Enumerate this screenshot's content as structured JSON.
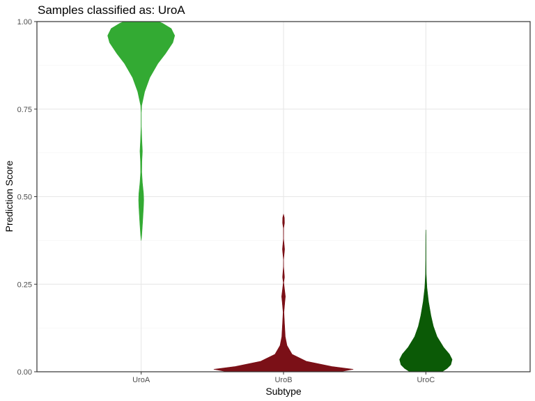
{
  "chart_data": {
    "type": "violin",
    "title": "Samples classified as: UroA",
    "xlabel": "Subtype",
    "ylabel": "Prediction Score",
    "categories": [
      "UroA",
      "UroB",
      "UroC"
    ],
    "ylim": [
      0,
      1
    ],
    "yticks": [
      0,
      0.25,
      0.5,
      0.75,
      1
    ],
    "ytick_labels": [
      "0.00",
      "0.25",
      "0.50",
      "0.75",
      "1.00"
    ],
    "grid": true,
    "series": [
      {
        "category": "UroA",
        "color": "#33AA33",
        "range": [
          0.375,
          1.0
        ],
        "density": [
          [
            0.375,
            0.0
          ],
          [
            0.39,
            0.2
          ],
          [
            0.43,
            0.55
          ],
          [
            0.47,
            0.85
          ],
          [
            0.49,
            0.95
          ],
          [
            0.51,
            0.85
          ],
          [
            0.54,
            0.45
          ],
          [
            0.57,
            0.2
          ],
          [
            0.6,
            0.25
          ],
          [
            0.63,
            0.45
          ],
          [
            0.66,
            0.25
          ],
          [
            0.7,
            0.05
          ],
          [
            0.74,
            0.04
          ],
          [
            0.76,
            0.18
          ],
          [
            0.8,
            1.3
          ],
          [
            0.84,
            3.2
          ],
          [
            0.88,
            6.2
          ],
          [
            0.91,
            9.2
          ],
          [
            0.94,
            11.8
          ],
          [
            0.96,
            12.5
          ],
          [
            0.98,
            11.2
          ],
          [
            0.995,
            8.0
          ],
          [
            1.0,
            6.5
          ]
        ]
      },
      {
        "category": "UroB",
        "color": "#7B1017",
        "range": [
          0.0,
          0.45
        ],
        "density": [
          [
            0.0,
            21.0
          ],
          [
            0.007,
            26.0
          ],
          [
            0.015,
            18.0
          ],
          [
            0.03,
            8.5
          ],
          [
            0.05,
            3.2
          ],
          [
            0.075,
            1.3
          ],
          [
            0.1,
            0.65
          ],
          [
            0.14,
            0.35
          ],
          [
            0.17,
            0.15
          ],
          [
            0.2,
            0.5
          ],
          [
            0.215,
            0.7
          ],
          [
            0.24,
            0.3
          ],
          [
            0.255,
            0.08
          ],
          [
            0.27,
            0.35
          ],
          [
            0.3,
            0.05
          ],
          [
            0.32,
            0.02
          ],
          [
            0.35,
            0.4
          ],
          [
            0.38,
            0.03
          ],
          [
            0.41,
            0.05
          ],
          [
            0.425,
            0.35
          ],
          [
            0.44,
            0.3
          ],
          [
            0.45,
            0.0
          ]
        ]
      },
      {
        "category": "UroC",
        "color": "#0B5A06",
        "range": [
          0.0,
          0.405
        ],
        "density": [
          [
            0.0,
            6.0
          ],
          [
            0.01,
            8.0
          ],
          [
            0.02,
            9.3
          ],
          [
            0.035,
            9.8
          ],
          [
            0.05,
            8.8
          ],
          [
            0.07,
            6.6
          ],
          [
            0.1,
            4.2
          ],
          [
            0.13,
            2.8
          ],
          [
            0.16,
            1.9
          ],
          [
            0.2,
            1.0
          ],
          [
            0.24,
            0.4
          ],
          [
            0.28,
            0.12
          ],
          [
            0.32,
            0.06
          ],
          [
            0.36,
            0.05
          ],
          [
            0.39,
            0.03
          ],
          [
            0.405,
            0.0
          ]
        ]
      }
    ]
  }
}
